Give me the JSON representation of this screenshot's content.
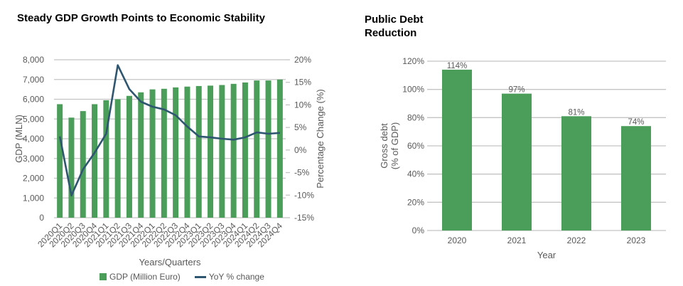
{
  "colors": {
    "bar": "#4a9e5a",
    "line": "#2e5670",
    "grid": "#c4c4c4",
    "text": "#595959"
  },
  "chart_data": [
    {
      "type": "bar+line",
      "title": "Steady GDP Growth Points to Economic Stability",
      "xlabel": "Years/Quarters",
      "ylabel": "GDP (MLN)",
      "y2label": "Percentage Change (%)",
      "ylim": [
        0,
        8000
      ],
      "y2lim": [
        -15,
        20
      ],
      "yticks": [
        "0",
        "1,000",
        "2,000",
        "3,000",
        "4,000",
        "5,000",
        "6,000",
        "7,000",
        "8,000"
      ],
      "y2ticks": [
        "-15%",
        "-10%",
        "-5%",
        "0%",
        "5%",
        "10%",
        "15%",
        "20%"
      ],
      "grid": true,
      "legend_position": "bottom",
      "categories": [
        "2020Q1",
        "2020Q2",
        "2020Q3",
        "2020Q4",
        "2021Q1",
        "2021Q2",
        "2021Q3",
        "2021Q4",
        "2022Q1",
        "2022Q2",
        "2022Q3",
        "2022Q4",
        "2023Q1",
        "2023Q2",
        "2023Q3",
        "2023Q4",
        "2024Q1",
        "2024Q2",
        "2024Q3",
        "2024Q4"
      ],
      "series": [
        {
          "name": "GDP (Million Euro)",
          "type": "bar",
          "axis": "left",
          "values": [
            5750,
            5070,
            5400,
            5750,
            5950,
            6000,
            6170,
            6350,
            6500,
            6530,
            6600,
            6640,
            6670,
            6690,
            6720,
            6780,
            6850,
            6950,
            6950,
            7000
          ]
        },
        {
          "name": "YoY % change",
          "type": "line",
          "axis": "right",
          "values": [
            3.0,
            -10.1,
            -4.3,
            -0.6,
            3.6,
            18.8,
            13.5,
            10.7,
            9.6,
            9.0,
            7.7,
            5.2,
            3.0,
            2.8,
            2.5,
            2.3,
            2.8,
            3.9,
            3.6,
            3.8
          ]
        }
      ]
    },
    {
      "type": "bar",
      "title": "Public Debt Reduction",
      "xlabel": "Year",
      "ylabel_line1": "Gross debt",
      "ylabel_line2": "(% of GDP)",
      "ylim": [
        0,
        120
      ],
      "yticks": [
        "0%",
        "20%",
        "40%",
        "60%",
        "80%",
        "100%",
        "120%"
      ],
      "grid": true,
      "categories": [
        "2020",
        "2021",
        "2022",
        "2023"
      ],
      "values": [
        114,
        97,
        81,
        74
      ],
      "data_labels": [
        "114%",
        "97%",
        "81%",
        "74%"
      ]
    }
  ]
}
